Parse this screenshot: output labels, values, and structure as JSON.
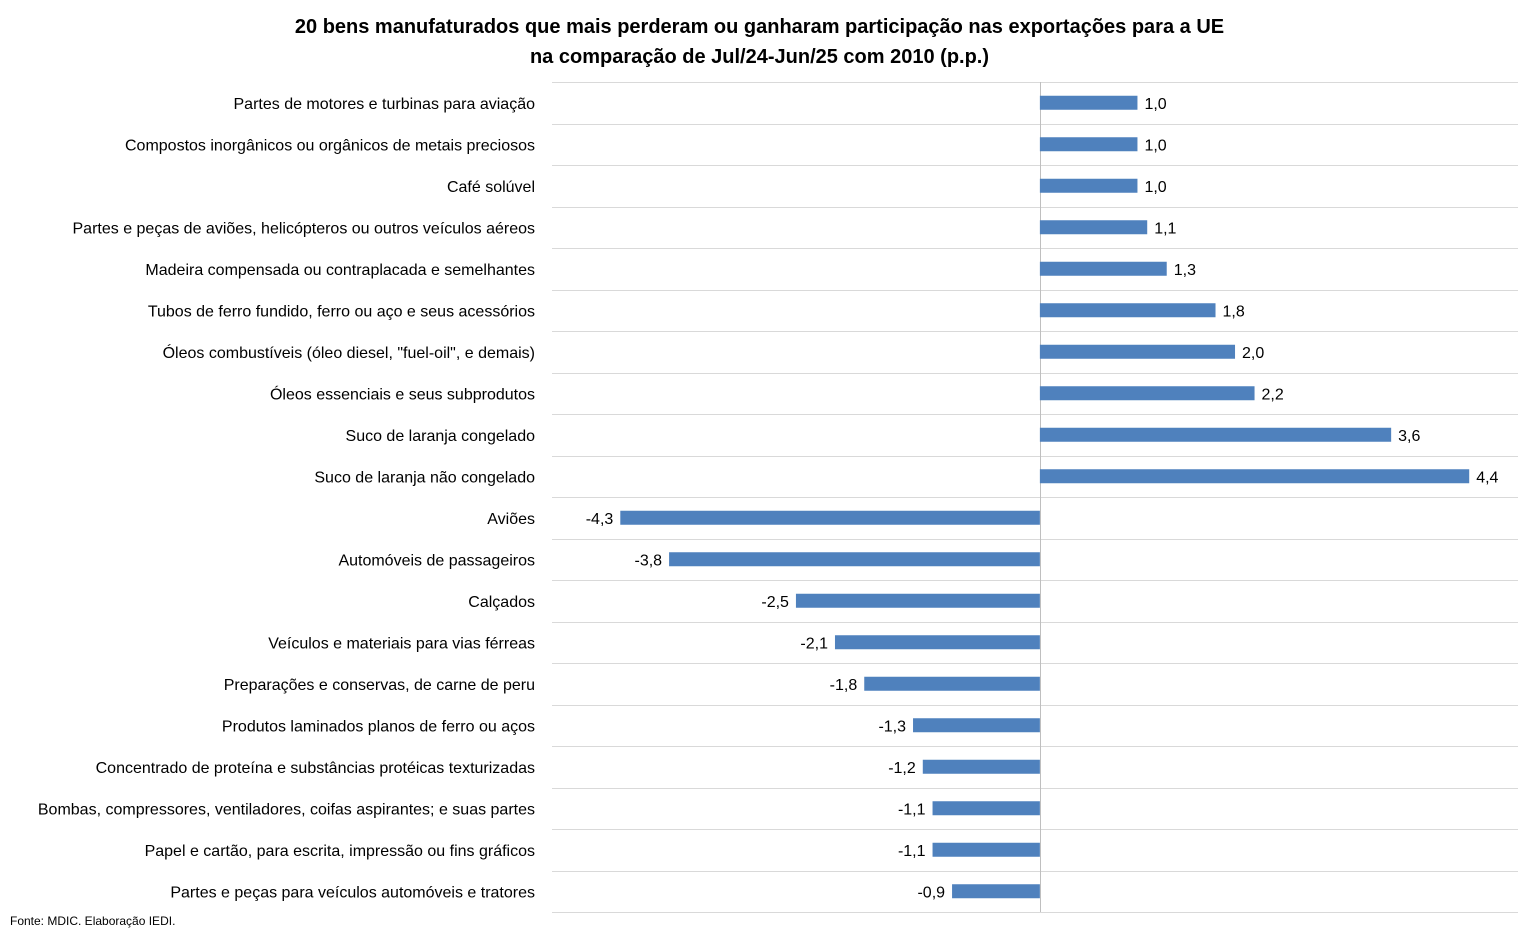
{
  "chart_data": {
    "type": "bar",
    "orientation": "horizontal",
    "title_lines": [
      "20 bens manufaturados que mais perderam ou ganharam participação nas exportações para a UE",
      "na comparação de Jul/24-Jun/25 com 2010 (p.p.)"
    ],
    "categories": [
      "Partes de motores e turbinas para aviação",
      "Compostos inorgânicos ou orgânicos de metais preciosos",
      "Café solúvel",
      "Partes e peças de aviões, helicópteros ou outros veículos aéreos",
      "Madeira compensada ou contraplacada e semelhantes",
      "Tubos de ferro fundido, ferro ou aço e seus acessórios",
      "Óleos combustíveis (óleo diesel, \"fuel-oil\", e demais)",
      "Óleos essenciais e seus subprodutos",
      "Suco de laranja congelado",
      "Suco de laranja não congelado",
      "Aviões",
      "Automóveis de passageiros",
      "Calçados",
      "Veículos e materiais para vias férreas",
      "Preparações e conservas, de carne de peru",
      "Produtos laminados planos de ferro ou aços",
      "Concentrado de proteína e substâncias protéicas texturizadas",
      "Bombas, compressores, ventiladores, coifas aspirantes; e suas partes",
      "Papel e cartão, para escrita, impressão ou fins gráficos",
      "Partes e peças para veículos automóveis e tratores"
    ],
    "values": [
      1.0,
      1.0,
      1.0,
      1.1,
      1.3,
      1.8,
      2.0,
      2.2,
      3.6,
      4.4,
      -4.3,
      -3.8,
      -2.5,
      -2.1,
      -1.8,
      -1.3,
      -1.2,
      -1.1,
      -1.1,
      -0.9
    ],
    "value_labels": [
      "1,0",
      "1,0",
      "1,0",
      "1,1",
      "1,3",
      "1,8",
      "2,0",
      "2,2",
      "3,6",
      "4,4",
      "-4,3",
      "-3,8",
      "-2,5",
      "-2,1",
      "-1,8",
      "-1,3",
      "-1,2",
      "-1,1",
      "-1,1",
      "-0,9"
    ],
    "xlim": [
      -5.0,
      4.9
    ],
    "grid": true,
    "bar_color": "#4f81bd",
    "gridline_color": "#d9d9d9",
    "axis_color": "#bfbfbf"
  },
  "footer": "Fonte: MDIC. Elaboração IEDI."
}
